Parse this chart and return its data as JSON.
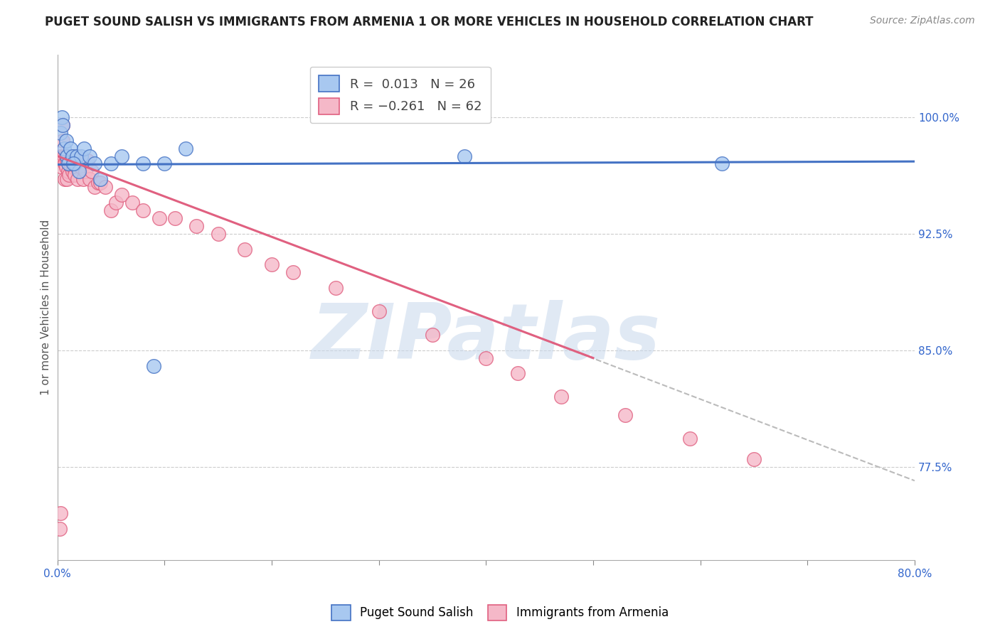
{
  "title": "PUGET SOUND SALISH VS IMMIGRANTS FROM ARMENIA 1 OR MORE VEHICLES IN HOUSEHOLD CORRELATION CHART",
  "source": "Source: ZipAtlas.com",
  "ylabel": "1 or more Vehicles in Household",
  "xlim": [
    0.0,
    0.8
  ],
  "ylim": [
    0.715,
    1.04
  ],
  "legend_r1": "R =  0.013",
  "legend_n1": "N = 26",
  "legend_r2": "R = -0.261",
  "legend_n2": "N = 62",
  "blue_color": "#A8C8F0",
  "pink_color": "#F5B8C8",
  "trend_blue": "#4472C4",
  "trend_pink": "#E06080",
  "trend_gray": "#BBBBBB",
  "watermark": "ZIPatlas",
  "ytick_vals": [
    0.775,
    0.85,
    0.925,
    1.0
  ],
  "ytick_labels": [
    "77.5%",
    "85.0%",
    "92.5%",
    "100.0%"
  ],
  "blue_trend_x": [
    0.0,
    0.8
  ],
  "blue_trend_y": [
    0.9695,
    0.9715
  ],
  "pink_trend_x": [
    0.0,
    0.5
  ],
  "pink_trend_y": [
    0.975,
    0.845
  ],
  "gray_trend_x": [
    0.4,
    0.8
  ],
  "gray_trend_y": [
    0.871,
    0.766
  ],
  "blue_scatter_x": [
    0.003,
    0.004,
    0.005,
    0.006,
    0.008,
    0.009,
    0.01,
    0.012,
    0.014,
    0.016,
    0.018,
    0.02,
    0.022,
    0.025,
    0.03,
    0.035,
    0.04,
    0.05,
    0.06,
    0.08,
    0.09,
    0.1,
    0.12,
    0.38,
    0.62,
    0.015
  ],
  "blue_scatter_y": [
    0.99,
    1.0,
    0.995,
    0.98,
    0.985,
    0.975,
    0.97,
    0.98,
    0.975,
    0.97,
    0.975,
    0.965,
    0.975,
    0.98,
    0.975,
    0.97,
    0.96,
    0.97,
    0.975,
    0.97,
    0.84,
    0.97,
    0.98,
    0.975,
    0.97,
    0.97
  ],
  "pink_scatter_x": [
    0.002,
    0.003,
    0.004,
    0.004,
    0.005,
    0.005,
    0.006,
    0.007,
    0.007,
    0.008,
    0.008,
    0.009,
    0.009,
    0.01,
    0.01,
    0.011,
    0.011,
    0.012,
    0.013,
    0.013,
    0.014,
    0.014,
    0.015,
    0.015,
    0.016,
    0.017,
    0.018,
    0.018,
    0.019,
    0.02,
    0.022,
    0.024,
    0.026,
    0.028,
    0.03,
    0.032,
    0.035,
    0.038,
    0.04,
    0.045,
    0.05,
    0.055,
    0.06,
    0.07,
    0.08,
    0.095,
    0.11,
    0.13,
    0.15,
    0.175,
    0.2,
    0.22,
    0.26,
    0.3,
    0.35,
    0.4,
    0.43,
    0.47,
    0.53,
    0.59,
    0.65,
    0.003
  ],
  "pink_scatter_y": [
    0.735,
    0.975,
    0.975,
    0.968,
    0.985,
    0.995,
    0.975,
    0.97,
    0.96,
    0.975,
    0.968,
    0.972,
    0.96,
    0.975,
    0.965,
    0.97,
    0.963,
    0.972,
    0.968,
    0.975,
    0.965,
    0.97,
    0.968,
    0.975,
    0.963,
    0.97,
    0.968,
    0.975,
    0.96,
    0.972,
    0.968,
    0.96,
    0.965,
    0.972,
    0.96,
    0.965,
    0.955,
    0.958,
    0.958,
    0.955,
    0.94,
    0.945,
    0.95,
    0.945,
    0.94,
    0.935,
    0.935,
    0.93,
    0.925,
    0.915,
    0.905,
    0.9,
    0.89,
    0.875,
    0.86,
    0.845,
    0.835,
    0.82,
    0.808,
    0.793,
    0.78,
    0.745
  ]
}
